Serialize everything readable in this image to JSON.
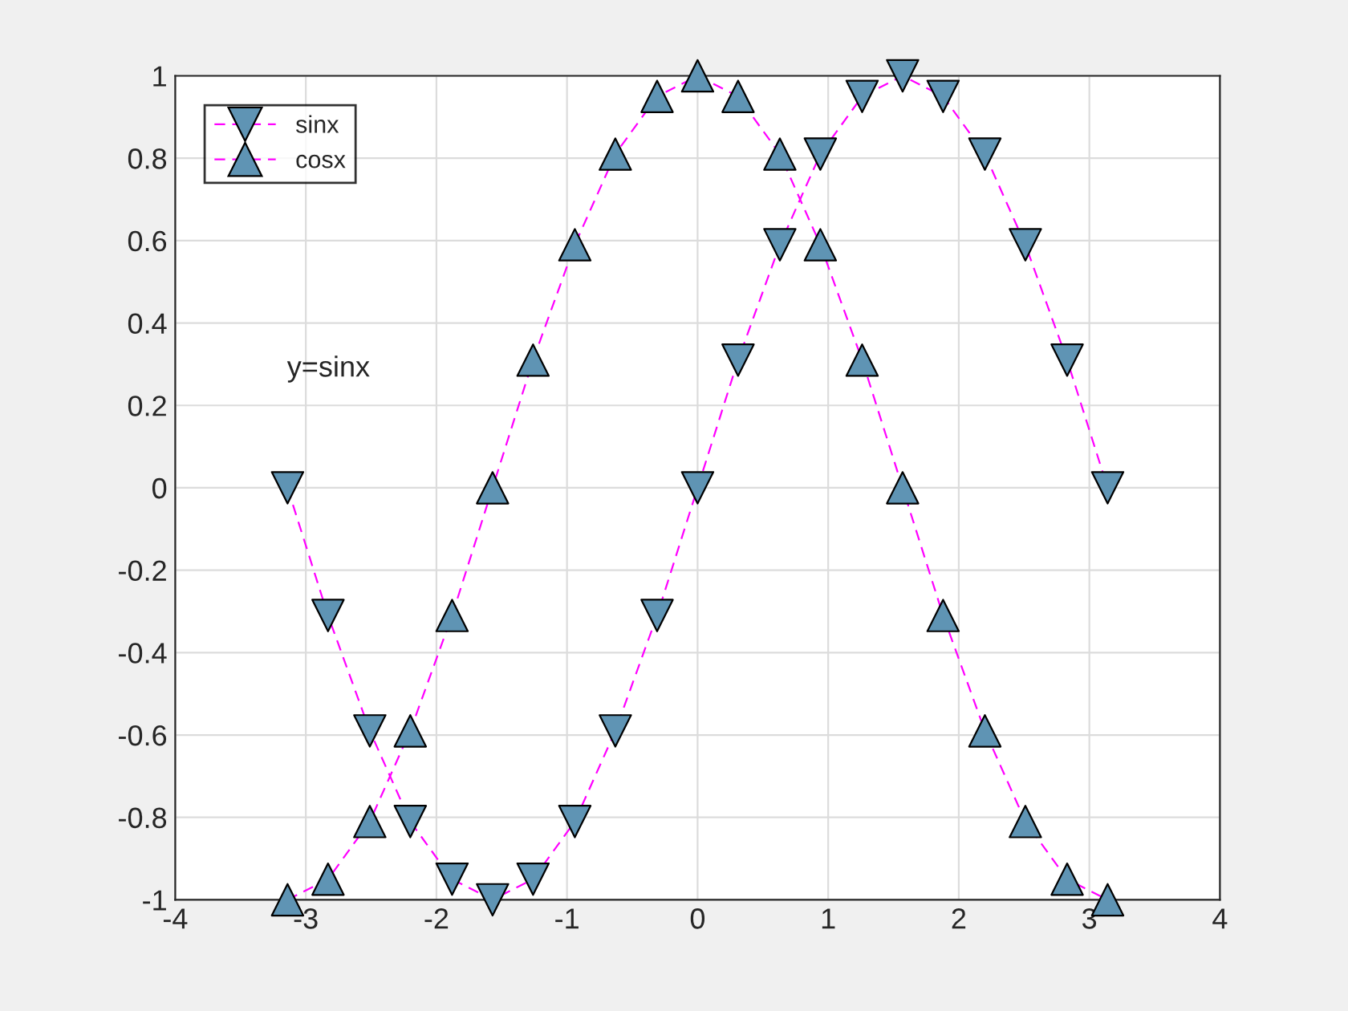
{
  "chart_data": {
    "type": "line",
    "x": [
      -3.14,
      -2.83,
      -2.51,
      -2.2,
      -1.88,
      -1.57,
      -1.26,
      -0.94,
      -0.63,
      -0.31,
      0,
      0.31,
      0.63,
      0.94,
      1.26,
      1.57,
      1.88,
      2.2,
      2.51,
      2.83,
      3.14
    ],
    "series": [
      {
        "name": "sinx",
        "color": "#ff00ff",
        "colors": [
          "#5f94b4",
          "#5f94b4",
          "#5f94b4",
          "#5f94b4",
          "#5f94b4",
          "#5f94b4",
          "#5f94b4",
          "#5f94b4",
          "#5f94b4",
          "#5f94b4",
          "#5f94b4",
          "#5f94b4",
          "#5f94b4",
          "#5f94b4",
          "#5f94b4",
          "#5f94b4",
          "#5f94b4",
          "#5f94b4",
          "#5f94b4",
          "#5f94b4",
          "#5f94b4"
        ],
        "marker": "triangle_down",
        "values": [
          0,
          -0.31,
          -0.59,
          -0.81,
          -0.95,
          -1,
          -0.95,
          -0.81,
          -0.59,
          -0.31,
          0,
          0.31,
          0.59,
          0.81,
          0.95,
          1,
          0.95,
          0.81,
          0.59,
          0.31,
          0
        ]
      },
      {
        "name": "cosx",
        "color": "#ff00ff",
        "colors": [
          "#5f94b4",
          "#5f94b4",
          "#5f94b4",
          "#5f94b4",
          "#5f94b4",
          "#5f94b4",
          "#5f94b4",
          "#5f94b4",
          "#5f94b4",
          "#5f94b4",
          "#5f94b4",
          "#5f94b4",
          "#5f94b4",
          "#5f94b4",
          "#5f94b4",
          "#5f94b4",
          "#5f94b4",
          "#5f94b4",
          "#5f94b4",
          "#5f94b4",
          "#5f94b4"
        ],
        "marker": "triangle",
        "values": [
          -1,
          -0.95,
          -0.81,
          -0.59,
          -0.31,
          0,
          0.31,
          0.59,
          0.81,
          0.95,
          1,
          0.95,
          0.81,
          0.59,
          0.31,
          0,
          -0.31,
          -0.59,
          -0.81,
          -0.95,
          -1
        ]
      }
    ],
    "line_style": "dashed",
    "xlim": [
      -4,
      4
    ],
    "xticks": [
      -4,
      -3,
      -2,
      -1,
      0,
      1,
      2,
      3,
      4
    ],
    "ylim": [
      -1,
      1
    ],
    "yticks": [
      -1,
      -0.8,
      -0.6,
      -0.4,
      -0.2,
      0,
      0.2,
      0.4,
      0.6,
      0.8,
      1
    ],
    "annotations": [
      "y=sinx"
    ],
    "grid": true,
    "legend": "top left"
  }
}
